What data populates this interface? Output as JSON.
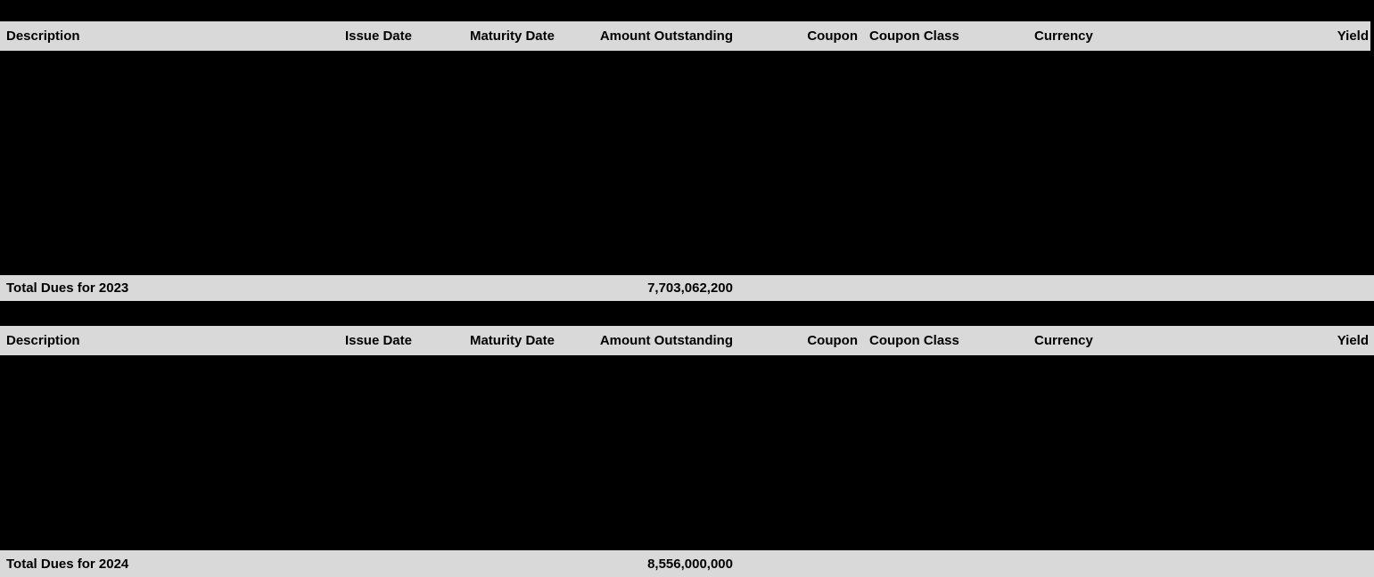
{
  "colors": {
    "page_background": "#000000",
    "row_background": "#d9d9d9",
    "text": "#000000"
  },
  "table": {
    "columns": [
      {
        "label": "Description"
      },
      {
        "label": "Issue Date"
      },
      {
        "label": "Maturity Date"
      },
      {
        "label": "Amount Outstanding"
      },
      {
        "label": "Coupon"
      },
      {
        "label": "Coupon Class"
      },
      {
        "label": "Currency"
      },
      {
        "label": "Yield"
      }
    ],
    "sections": [
      {
        "year": "2023",
        "total_label": "Total Dues for 2023",
        "total_amount": "7,703,062,200"
      },
      {
        "year": "2024",
        "total_label": "Total Dues for 2024",
        "total_amount": "8,556,000,000"
      }
    ]
  }
}
